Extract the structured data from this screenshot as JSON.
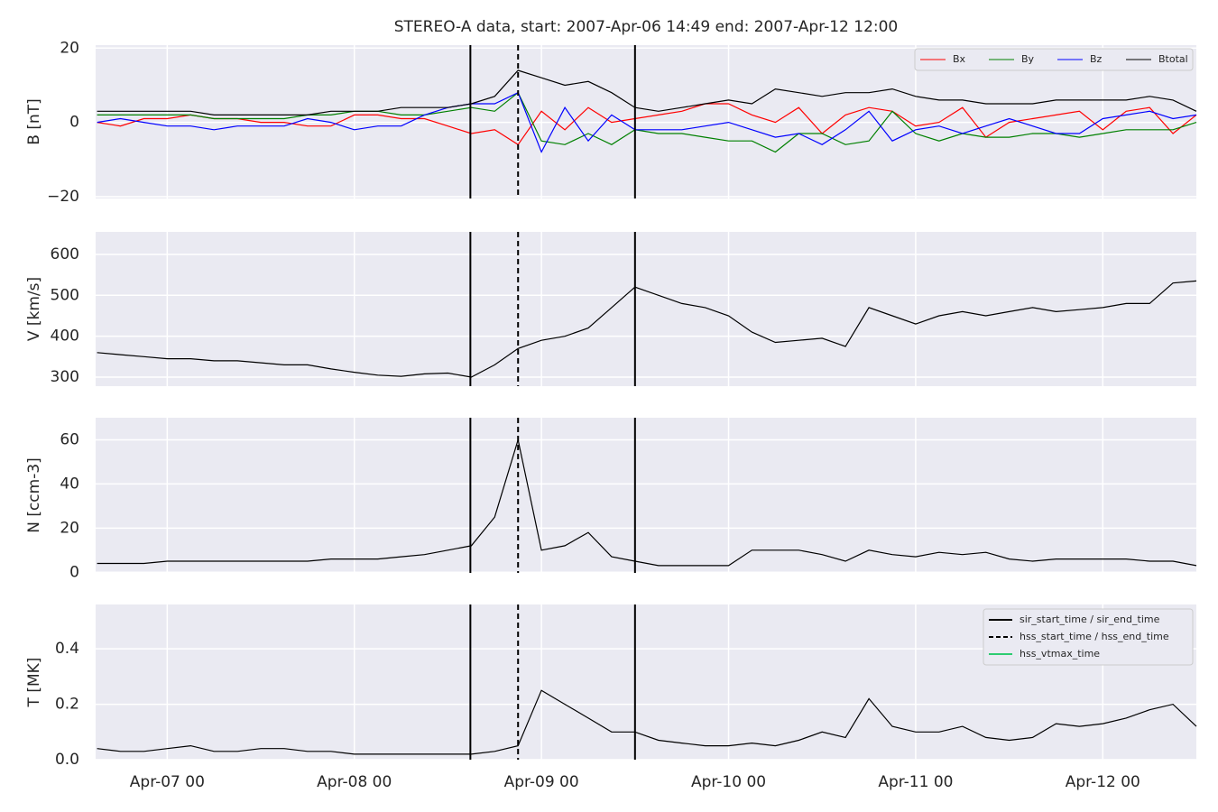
{
  "chart_data": [
    {
      "type": "line",
      "title": "STEREO-A data, start: 2007-Apr-06 14:49  end: 2007-Apr-12 12:00",
      "ylabel": "B [nT]",
      "ylim": [
        -20.5,
        20.8
      ],
      "yticks": [
        {
          "value": -20,
          "label": "−20"
        },
        0,
        20
      ],
      "grid": true,
      "legend": "upper right",
      "x": [
        "2007-04-06T15:00",
        "2007-04-06T18:00",
        "2007-04-06T21:00",
        "2007-04-07T00:00",
        "2007-04-07T03:00",
        "2007-04-07T06:00",
        "2007-04-07T09:00",
        "2007-04-07T12:00",
        "2007-04-07T15:00",
        "2007-04-07T18:00",
        "2007-04-07T21:00",
        "2007-04-08T00:00",
        "2007-04-08T03:00",
        "2007-04-08T06:00",
        "2007-04-08T09:00",
        "2007-04-08T12:00",
        "2007-04-08T15:00",
        "2007-04-08T18:00",
        "2007-04-08T21:00",
        "2007-04-09T00:00",
        "2007-04-09T03:00",
        "2007-04-09T06:00",
        "2007-04-09T09:00",
        "2007-04-09T12:00",
        "2007-04-09T15:00",
        "2007-04-09T18:00",
        "2007-04-09T21:00",
        "2007-04-10T00:00",
        "2007-04-10T03:00",
        "2007-04-10T06:00",
        "2007-04-10T09:00",
        "2007-04-10T12:00",
        "2007-04-10T15:00",
        "2007-04-10T18:00",
        "2007-04-10T21:00",
        "2007-04-11T00:00",
        "2007-04-11T03:00",
        "2007-04-11T06:00",
        "2007-04-11T09:00",
        "2007-04-11T12:00",
        "2007-04-11T15:00",
        "2007-04-11T18:00",
        "2007-04-11T21:00",
        "2007-04-12T00:00",
        "2007-04-12T03:00",
        "2007-04-12T06:00",
        "2007-04-12T09:00",
        "2007-04-12T12:00"
      ],
      "series": [
        {
          "name": "Bx",
          "color": "#ff0000",
          "values": [
            0,
            -1,
            1,
            1,
            2,
            1,
            1,
            0,
            0,
            -1,
            -1,
            2,
            2,
            1,
            1,
            -1,
            -3,
            -2,
            -6,
            3,
            -2,
            4,
            0,
            1,
            2,
            3,
            5,
            5,
            2,
            0,
            4,
            -3,
            2,
            4,
            3,
            -1,
            0,
            4,
            -4,
            0,
            1,
            2,
            3,
            -2,
            3,
            4,
            -3,
            2
          ]
        },
        {
          "name": "By",
          "color": "#008000",
          "values": [
            2,
            2,
            2,
            2,
            2,
            1,
            1,
            1,
            1,
            2,
            2,
            3,
            3,
            2,
            2,
            3,
            4,
            3,
            8,
            -5,
            -6,
            -3,
            -6,
            -2,
            -3,
            -3,
            -4,
            -5,
            -5,
            -8,
            -3,
            -3,
            -6,
            -5,
            3,
            -3,
            -5,
            -3,
            -4,
            -4,
            -3,
            -3,
            -4,
            -3,
            -2,
            -2,
            -2,
            0
          ]
        },
        {
          "name": "Bz",
          "color": "#0000ff",
          "values": [
            0,
            1,
            0,
            -1,
            -1,
            -2,
            -1,
            -1,
            -1,
            1,
            0,
            -2,
            -1,
            -1,
            2,
            4,
            5,
            5,
            8,
            -8,
            4,
            -5,
            2,
            -2,
            -2,
            -2,
            -1,
            0,
            -2,
            -4,
            -3,
            -6,
            -2,
            3,
            -5,
            -2,
            -1,
            -3,
            -1,
            1,
            -1,
            -3,
            -3,
            1,
            2,
            3,
            1,
            2
          ]
        },
        {
          "name": "Btotal",
          "color": "#000000",
          "values": [
            3,
            3,
            3,
            3,
            3,
            2,
            2,
            2,
            2,
            2,
            3,
            3,
            3,
            4,
            4,
            4,
            5,
            7,
            14,
            12,
            10,
            11,
            8,
            4,
            3,
            4,
            5,
            6,
            5,
            9,
            8,
            7,
            8,
            8,
            9,
            7,
            6,
            6,
            5,
            5,
            5,
            6,
            6,
            6,
            6,
            7,
            6,
            3
          ]
        }
      ]
    },
    {
      "type": "line",
      "ylabel": "V [km/s]",
      "ylim": [
        278,
        655
      ],
      "yticks": [
        300,
        400,
        500,
        600
      ],
      "grid": true,
      "series": [
        {
          "color": "#000000",
          "values": [
            360,
            355,
            350,
            345,
            345,
            340,
            340,
            335,
            330,
            330,
            320,
            312,
            305,
            302,
            308,
            310,
            300,
            330,
            370,
            390,
            400,
            420,
            470,
            520,
            500,
            480,
            470,
            450,
            410,
            385,
            390,
            395,
            375,
            470,
            450,
            430,
            450,
            460,
            450,
            460,
            470,
            460,
            465,
            470,
            480,
            480,
            530,
            535
          ]
        }
      ]
    },
    {
      "type": "line",
      "ylabel": "N [ccm-3]",
      "ylim": [
        -0.3,
        70
      ],
      "yticks": [
        0,
        20,
        40,
        60
      ],
      "grid": true,
      "series": [
        {
          "color": "#000000",
          "values": [
            4,
            4,
            4,
            5,
            5,
            5,
            5,
            5,
            5,
            5,
            6,
            6,
            6,
            7,
            8,
            10,
            12,
            25,
            60,
            10,
            12,
            18,
            7,
            5,
            3,
            3,
            3,
            3,
            10,
            10,
            10,
            8,
            5,
            10,
            8,
            7,
            9,
            8,
            9,
            6,
            5,
            6,
            6,
            6,
            6,
            5,
            5,
            3
          ]
        }
      ]
    },
    {
      "type": "line",
      "ylabel": "T [MK]",
      "ylim": [
        0,
        0.56
      ],
      "yticks": [
        {
          "value": 0,
          "label": "0.0"
        },
        0.2,
        0.4
      ],
      "grid": true,
      "legend": "upper right",
      "xlim": [
        "2007-04-06T14:49",
        "2007-04-12T12:00"
      ],
      "xticks": [
        {
          "value": "2007-04-07T00:00",
          "label": "Apr-07 00"
        },
        {
          "value": "2007-04-08T00:00",
          "label": "Apr-08 00"
        },
        {
          "value": "2007-04-09T00:00",
          "label": "Apr-09 00"
        },
        {
          "value": "2007-04-10T00:00",
          "label": "Apr-10 00"
        },
        {
          "value": "2007-04-11T00:00",
          "label": "Apr-11 00"
        },
        {
          "value": "2007-04-12T00:00",
          "label": "Apr-12 00"
        }
      ],
      "series": [
        {
          "color": "#000000",
          "values": [
            0.04,
            0.03,
            0.03,
            0.04,
            0.05,
            0.03,
            0.03,
            0.04,
            0.04,
            0.03,
            0.03,
            0.02,
            0.02,
            0.02,
            0.02,
            0.02,
            0.02,
            0.03,
            0.05,
            0.25,
            0.2,
            0.15,
            0.1,
            0.1,
            0.07,
            0.06,
            0.05,
            0.05,
            0.06,
            0.05,
            0.07,
            0.1,
            0.08,
            0.22,
            0.12,
            0.1,
            0.1,
            0.12,
            0.08,
            0.07,
            0.08,
            0.13,
            0.12,
            0.13,
            0.15,
            0.18,
            0.2,
            0.12
          ]
        }
      ],
      "markers": [
        {
          "name": "sir_start_time / sir_end_time",
          "color": "#000000",
          "style": "solid",
          "times": [
            "2007-04-08T14:53",
            "2007-04-09T12:00"
          ]
        },
        {
          "name": "hss_start_time / hss_end_time",
          "color": "#000000",
          "style": "dashed",
          "times": [
            "2007-04-08T21:00"
          ]
        },
        {
          "name": "hss_vtmax_time",
          "color": "#2ecc71",
          "style": "solid",
          "times": []
        }
      ]
    }
  ]
}
